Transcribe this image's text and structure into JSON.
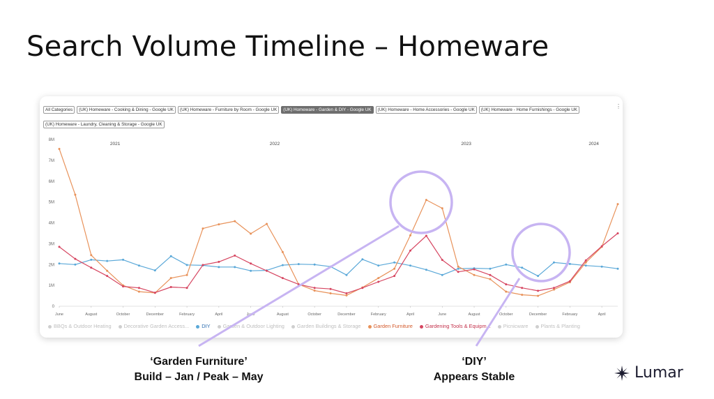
{
  "slide": {
    "title": "Search Volume Timeline – Homeware"
  },
  "filters": [
    {
      "label": "All Categories",
      "selected": false
    },
    {
      "label": "(UK) Homeware - Cooking & Dining - Google UK",
      "selected": false
    },
    {
      "label": "(UK) Homeware - Furniture by Room - Google UK",
      "selected": false
    },
    {
      "label": "(UK) Homeware - Garden & DIY - Google UK",
      "selected": true
    },
    {
      "label": "(UK) Homeware - Home Accessories - Google UK",
      "selected": false
    },
    {
      "label": "(UK) Homeware - Home Furnishings - Google UK",
      "selected": false
    },
    {
      "label": "(UK) Homeware - Laundry, Cleaning & Storage - Google UK",
      "selected": false
    }
  ],
  "more_icon": "⋮",
  "legend": [
    {
      "label": "BBQs & Outdoor Heating",
      "active": false
    },
    {
      "label": "Decorative Garden Access...",
      "active": false
    },
    {
      "label": "DIY",
      "active": true,
      "key": "diy"
    },
    {
      "label": "Garden & Outdoor Lighting",
      "active": false
    },
    {
      "label": "Garden Buildings & Storage",
      "active": false
    },
    {
      "label": "Garden Furniture",
      "active": true,
      "key": "gf"
    },
    {
      "label": "Gardening Tools & Equipm...",
      "active": true,
      "key": "gt"
    },
    {
      "label": "Picnicware",
      "active": false
    },
    {
      "label": "Plants & Planting",
      "active": false
    }
  ],
  "chart_data": {
    "type": "line",
    "y_ticks": [
      "0",
      "1M",
      "2M",
      "3M",
      "4M",
      "5M",
      "6M",
      "7M",
      "8M"
    ],
    "ylim": [
      0,
      8000000
    ],
    "years": [
      {
        "label": "2021",
        "at": 3.5
      },
      {
        "label": "2022",
        "at": 13.5
      },
      {
        "label": "2023",
        "at": 25.5
      },
      {
        "label": "2024",
        "at": 33.5
      }
    ],
    "x_ticks": [
      {
        "label": "June",
        "at": 0
      },
      {
        "label": "August",
        "at": 2
      },
      {
        "label": "October",
        "at": 4
      },
      {
        "label": "December",
        "at": 6
      },
      {
        "label": "February",
        "at": 8
      },
      {
        "label": "April",
        "at": 10
      },
      {
        "label": "June",
        "at": 12
      },
      {
        "label": "August",
        "at": 14
      },
      {
        "label": "October",
        "at": 16
      },
      {
        "label": "December",
        "at": 18
      },
      {
        "label": "February",
        "at": 20
      },
      {
        "label": "April",
        "at": 22
      },
      {
        "label": "June",
        "at": 24
      },
      {
        "label": "August",
        "at": 26
      },
      {
        "label": "October",
        "at": 28
      },
      {
        "label": "December",
        "at": 30
      },
      {
        "label": "February",
        "at": 32
      },
      {
        "label": "April",
        "at": 34
      }
    ],
    "x_count": 36,
    "series": [
      {
        "name": "DIY",
        "color": "#5aa8d8",
        "values": [
          2050000,
          2000000,
          2230000,
          2170000,
          2230000,
          1950000,
          1720000,
          2400000,
          1980000,
          1960000,
          1880000,
          1880000,
          1700000,
          1720000,
          1970000,
          2020000,
          2000000,
          1900000,
          1500000,
          2250000,
          1950000,
          2100000,
          1950000,
          1750000,
          1500000,
          1800000,
          1820000,
          1800000,
          2000000,
          1850000,
          1450000,
          2100000,
          2030000,
          1950000,
          1900000,
          1800000
        ]
      },
      {
        "name": "Garden Furniture",
        "color": "#e8925a",
        "values": [
          7550000,
          5350000,
          2450000,
          1700000,
          1000000,
          700000,
          640000,
          1350000,
          1500000,
          3730000,
          3930000,
          4080000,
          3480000,
          3950000,
          2600000,
          1050000,
          750000,
          620000,
          520000,
          900000,
          1350000,
          1800000,
          3400000,
          5100000,
          4700000,
          1900000,
          1500000,
          1300000,
          700000,
          550000,
          500000,
          800000,
          1150000,
          2100000,
          2850000,
          4900000
        ]
      },
      {
        "name": "Gardening Tools & Equipm...",
        "color": "#d64560",
        "values": [
          2850000,
          2270000,
          1850000,
          1450000,
          950000,
          880000,
          650000,
          920000,
          880000,
          1980000,
          2130000,
          2430000,
          2050000,
          1700000,
          1350000,
          1050000,
          880000,
          830000,
          620000,
          880000,
          1170000,
          1450000,
          2670000,
          3380000,
          2220000,
          1650000,
          1770000,
          1500000,
          1050000,
          880000,
          740000,
          880000,
          1200000,
          2200000,
          2880000,
          3500000
        ]
      }
    ]
  },
  "annotations": {
    "garden_furniture": {
      "line1": "‘Garden Furniture’",
      "line2": "Build – Jan / Peak – May"
    },
    "diy": {
      "line1": "‘DIY’",
      "line2": "Appears Stable"
    }
  },
  "brand": {
    "name": "Lumar",
    "icon": "lumar-logo-icon",
    "icon_color": "#1a1a2e"
  }
}
